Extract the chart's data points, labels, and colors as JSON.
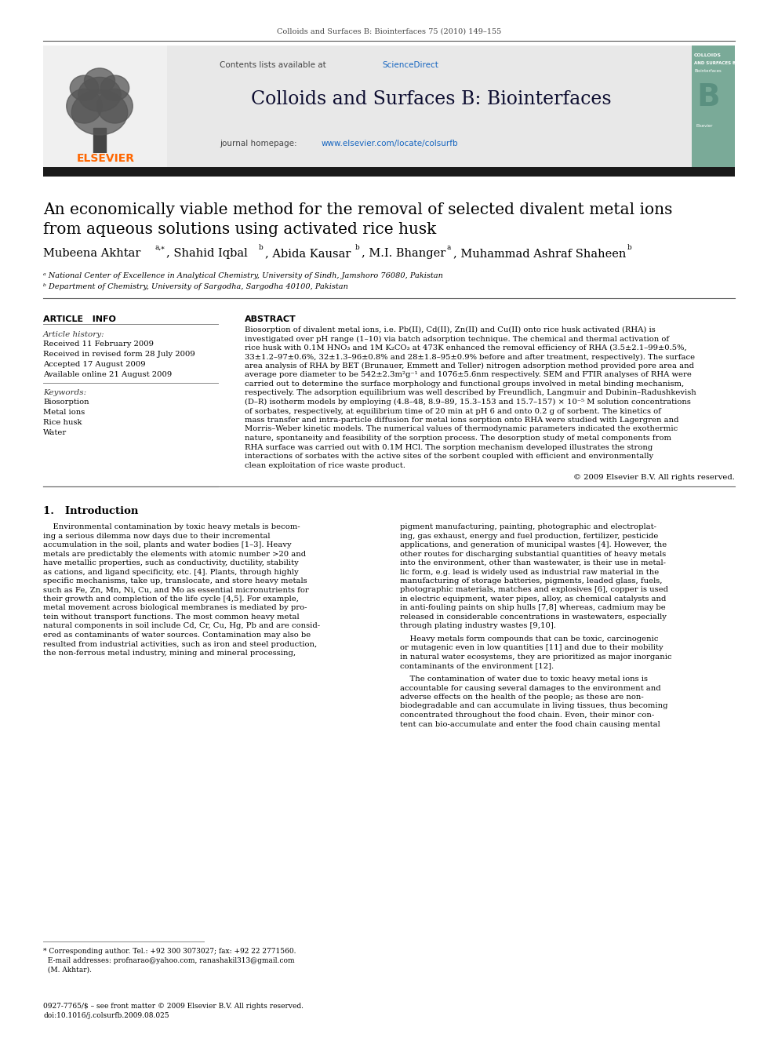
{
  "page_width": 9.92,
  "page_height": 13.23,
  "bg_color": "#ffffff",
  "top_journal_line": "Colloids and Surfaces B: Biointerfaces 75 (2010) 149–155",
  "header_bg": "#e8e8e8",
  "header_journal_title": "Colloids and Surfaces B: Biointerfaces",
  "header_homepage_text": "journal homepage: ",
  "header_homepage_url": "www.elsevier.com/locate/colsurfb",
  "header_contents_text": "Contents lists available at ",
  "header_sciencedirect": "ScienceDirect",
  "article_title_1": "An economically viable method for the removal of selected divalent metal ions",
  "article_title_2": "from aqueous solutions using activated rice husk",
  "affil_a": "ᵃ National Center of Excellence in Analytical Chemistry, University of Sindh, Jamshoro 76080, Pakistan",
  "affil_b": "ᵇ Department of Chemistry, University of Sargodha, Sargodha 40100, Pakistan",
  "article_info_header": "ARTICLE   INFO",
  "article_history_label": "Article history:",
  "article_history_lines": [
    "Received 11 February 2009",
    "Received in revised form 28 July 2009",
    "Accepted 17 August 2009",
    "Available online 21 August 2009"
  ],
  "keywords_label": "Keywords:",
  "keywords_lines": [
    "Biosorption",
    "Metal ions",
    "Rice husk",
    "Water"
  ],
  "abstract_header": "ABSTRACT",
  "abstract_text": "Biosorption of divalent metal ions, i.e. Pb(II), Cd(II), Zn(II) and Cu(II) onto rice husk activated (RHA) is investigated over pH range (1–10) via batch adsorption technique. The chemical and thermal activation of rice husk with 0.1M HNO₃ and 1M K₂CO₃ at 473K enhanced the removal efficiency of RHA (3.5±2.1–99±0.5%, 33±1.2–97±0.6%, 32±1.3–96±0.8% and 28±1.8–95±0.9% before and after treatment, respectively). The surface area analysis of RHA by BET (Brunauer, Emmett and Teller) nitrogen adsorption method provided pore area and average pore diameter to be 542±2.3m²g⁻¹ and 1076±5.6nm respectively. SEM and FTIR analyses of RHA were carried out to determine the surface morphology and functional groups involved in metal binding mechanism, respectively. The adsorption equilibrium was well described by Freundlich, Langmuir and Dubinin–Radushkevish (D–R) isotherm models by employing (4.8–48, 8.9–89, 15.3–153 and 15.7–157) × 10⁻⁵ M solution concentrations of sorbates, respectively, at equilibrium time of 20 min at pH 6 and onto 0.2 g of sorbent. The kinetics of mass transfer and intra-particle diffusion for metal ions sorption onto RHA were studied with Lagergren and Morris–Weber kinetic models. The numerical values of thermodynamic parameters indicated the exothermic nature, spontaneity and feasibility of the sorption process. The desorption study of metal components from RHA surface was carried out with 0.1M HCl. The sorption mechanism developed illustrates the strong interactions of sorbates with the active sites of the sorbent coupled with efficient and environmentally clean exploitation of rice waste product.",
  "copyright": "© 2009 Elsevier B.V. All rights reserved.",
  "intro_section": "1.   Introduction",
  "intro_col1_lines": [
    "    Environmental contamination by toxic heavy metals is becom-",
    "ing a serious dilemma now days due to their incremental",
    "accumulation in the soil, plants and water bodies [1–3]. Heavy",
    "metals are predictably the elements with atomic number >20 and",
    "have metallic properties, such as conductivity, ductility, stability",
    "as cations, and ligand specificity, etc. [4]. Plants, through highly",
    "specific mechanisms, take up, translocate, and store heavy metals",
    "such as Fe, Zn, Mn, Ni, Cu, and Mo as essential micronutrients for",
    "their growth and completion of the life cycle [4,5]. For example,",
    "metal movement across biological membranes is mediated by pro-",
    "tein without transport functions. The most common heavy metal",
    "natural components in soil include Cd, Cr, Cu, Hg, Pb and are consid-",
    "ered as contaminants of water sources. Contamination may also be",
    "resulted from industrial activities, such as iron and steel production,",
    "the non-ferrous metal industry, mining and mineral processing,"
  ],
  "intro_col2_para1": [
    "pigment manufacturing, painting, photographic and electroplat-",
    "ing, gas exhaust, energy and fuel production, fertilizer, pesticide",
    "applications, and generation of municipal wastes [4]. However, the",
    "other routes for discharging substantial quantities of heavy metals",
    "into the environment, other than wastewater, is their use in metal-",
    "lic form, e.g. lead is widely used as industrial raw material in the",
    "manufacturing of storage batteries, pigments, leaded glass, fuels,",
    "photographic materials, matches and explosives [6], copper is used",
    "in electric equipment, water pipes, alloy, as chemical catalysts and",
    "in anti-fouling paints on ship hulls [7,8] whereas, cadmium may be",
    "released in considerable concentrations in wastewaters, especially",
    "through plating industry wastes [9,10]."
  ],
  "intro_col2_para2": [
    "    Heavy metals form compounds that can be toxic, carcinogenic",
    "or mutagenic even in low quantities [11] and due to their mobility",
    "in natural water ecosystems, they are prioritized as major inorganic",
    "contaminants of the environment [12]."
  ],
  "intro_col2_para3": [
    "    The contamination of water due to toxic heavy metal ions is",
    "accountable for causing several damages to the environment and",
    "adverse effects on the health of the people; as these are non-",
    "biodegradable and can accumulate in living tissues, thus becoming",
    "concentrated throughout the food chain. Even, their minor con-",
    "tent can bio-accumulate and enter the food chain causing mental"
  ],
  "footnote_line1": "* Corresponding author. Tel.: +92 300 3073027; fax: +92 22 2771560.",
  "footnote_line2": "  E-mail addresses: profnarao@yahoo.com, ranashakil313@gmail.com",
  "footnote_line3": "  (M. Akhtar).",
  "footer_line1": "0927-7765/$ – see front matter © 2009 Elsevier B.V. All rights reserved.",
  "footer_line2": "doi:10.1016/j.colsurfb.2009.08.025",
  "elsevier_color": "#ff6600",
  "sciencedirect_color": "#1565c0",
  "teal_cover_color": "#7aaa98",
  "black_bar_color": "#1a1a1a",
  "divider_color": "#888888"
}
